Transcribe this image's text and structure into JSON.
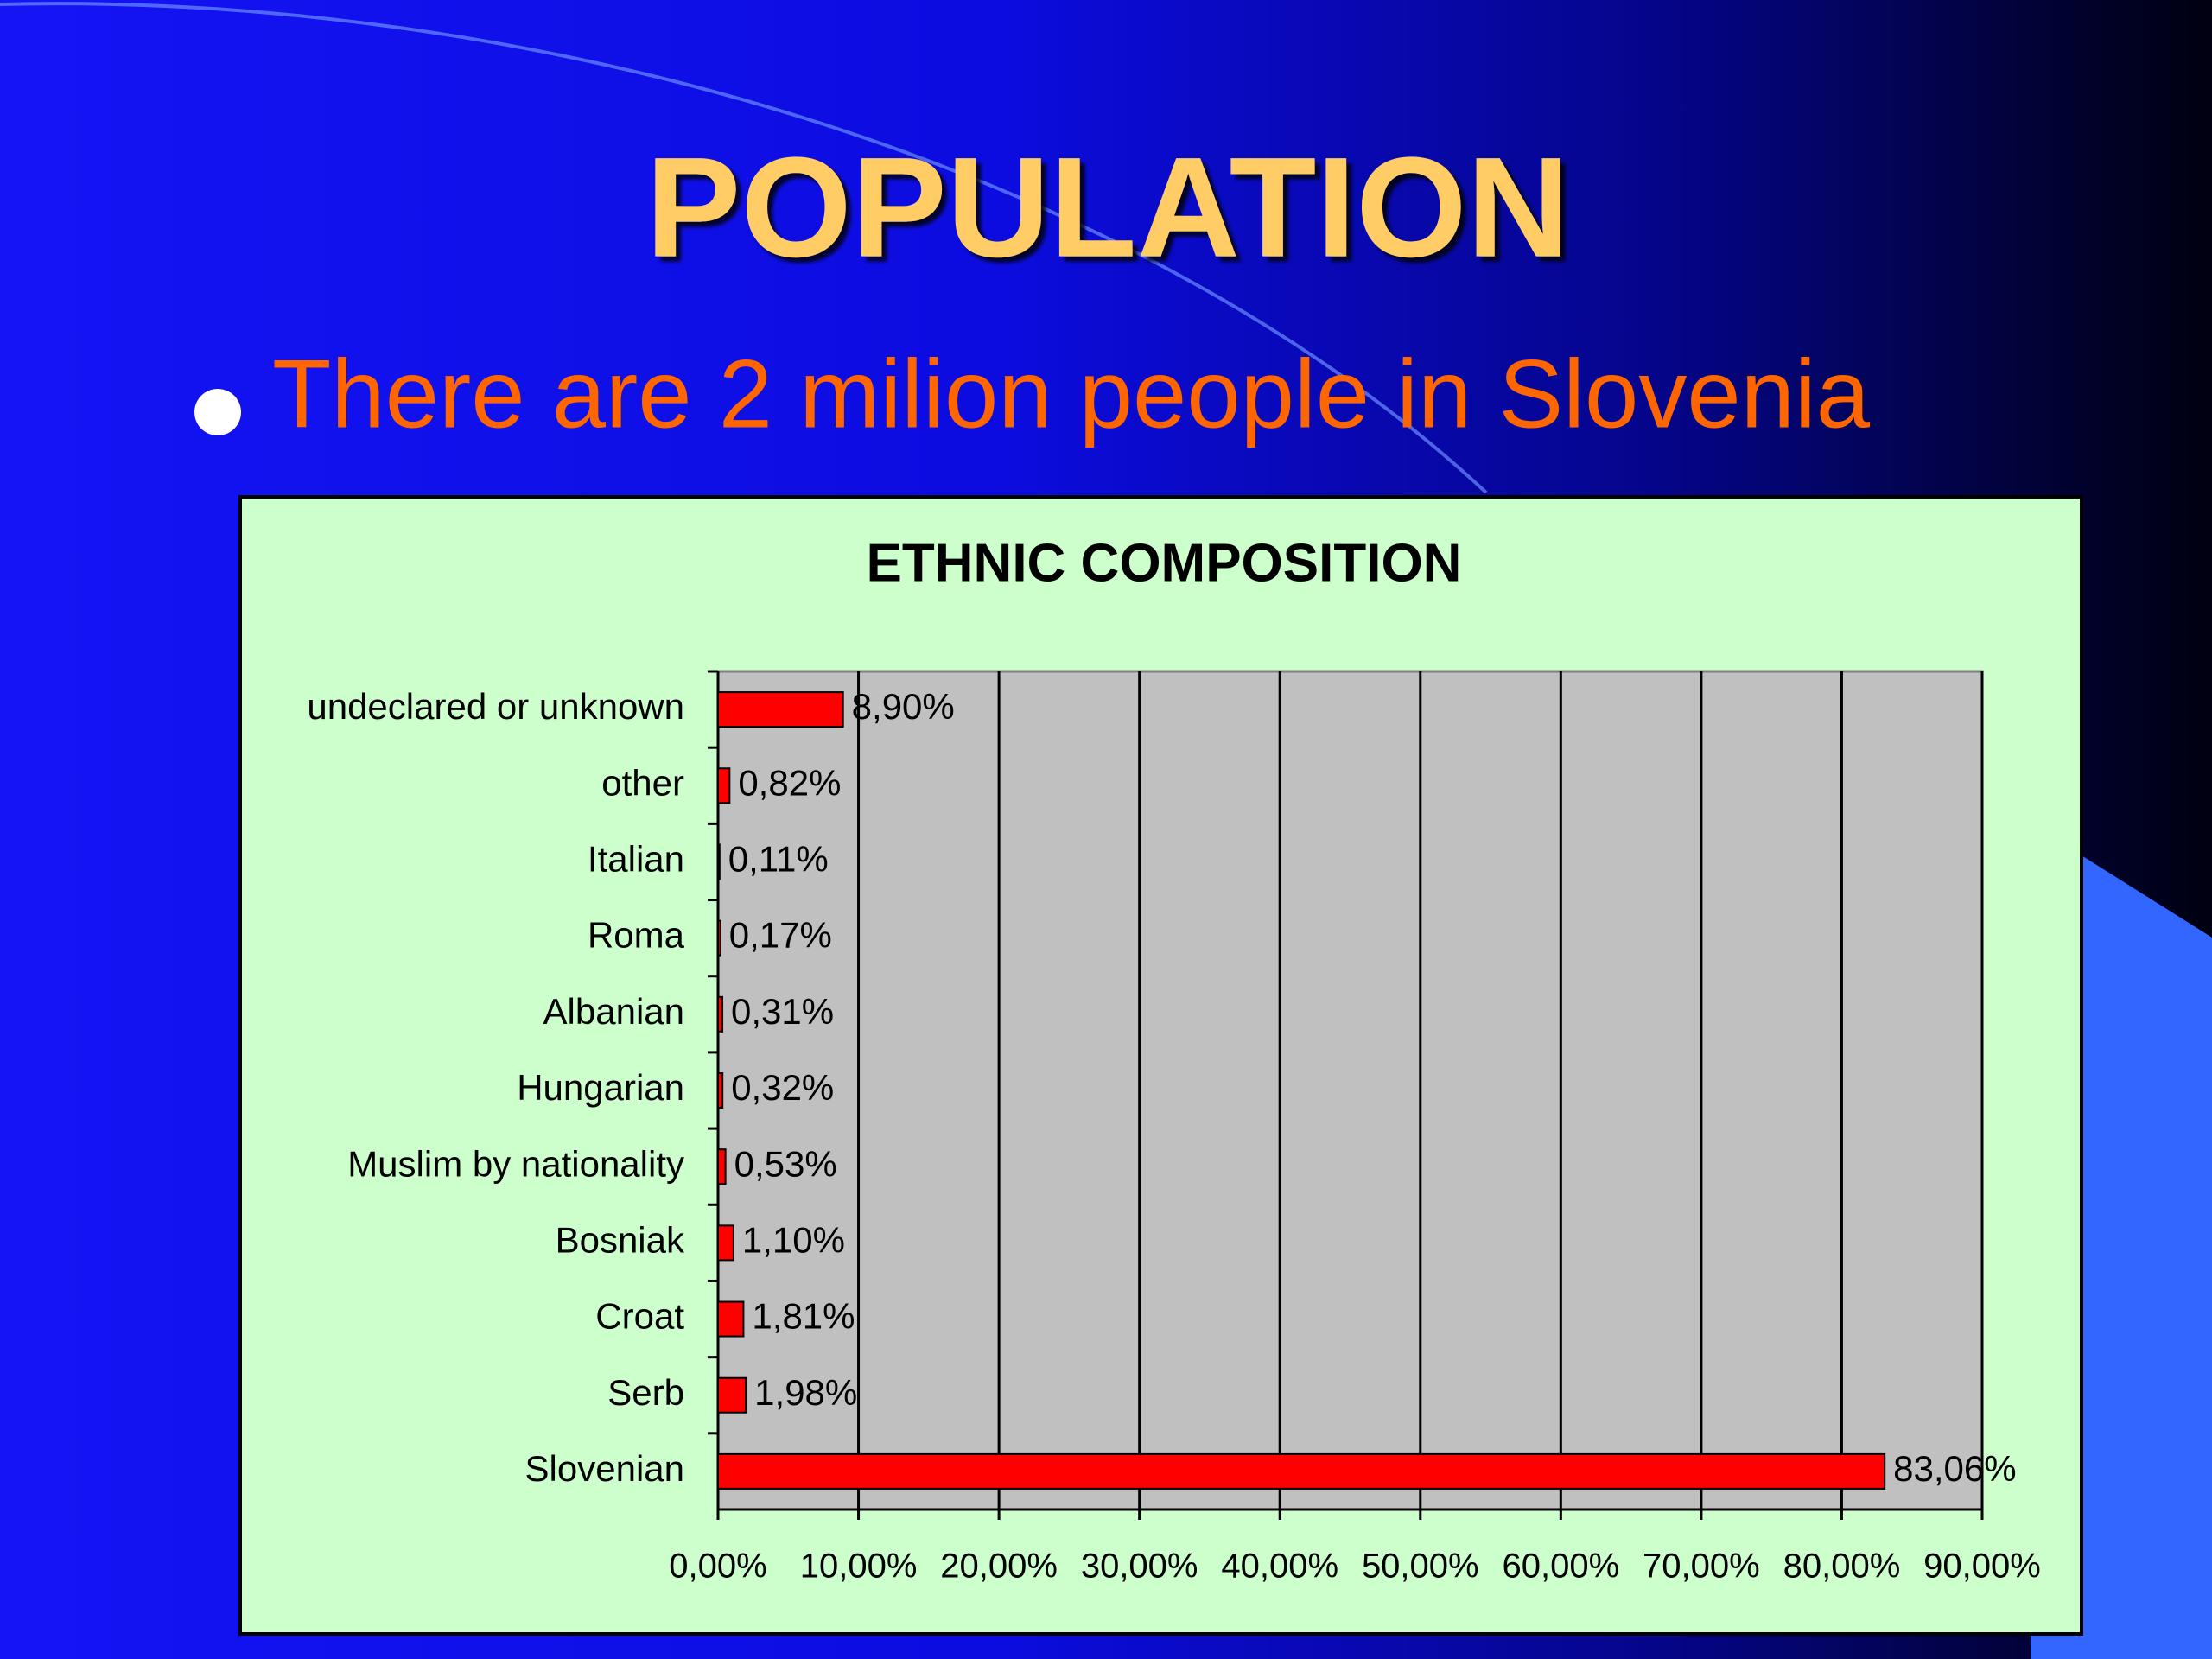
{
  "slide": {
    "title": "POPULATION",
    "bullet": "There are 2 milion people in Slovenia"
  },
  "chart_data": {
    "type": "hbar",
    "title": "ETHNIC COMPOSITION",
    "categories": [
      "undeclared or unknown",
      "other",
      "Italian",
      "Roma",
      "Albanian",
      "Hungarian",
      "Muslim by nationality",
      "Bosniak",
      "Croat",
      "Serb",
      "Slovenian"
    ],
    "values": [
      8.9,
      0.82,
      0.11,
      0.17,
      0.31,
      0.32,
      0.53,
      1.1,
      1.81,
      1.98,
      83.06
    ],
    "value_labels": [
      "8,90%",
      "0,82%",
      "0,11%",
      "0,17%",
      "0,31%",
      "0,32%",
      "0,53%",
      "1,10%",
      "1,81%",
      "1,98%",
      "83,06%"
    ],
    "color": "#ff0000",
    "xlim": [
      0,
      90
    ],
    "xticks": [
      {
        "value": 0,
        "label": "0,00%"
      },
      {
        "value": 10,
        "label": "10,00%"
      },
      {
        "value": 20,
        "label": "20,00%"
      },
      {
        "value": 30,
        "label": "30,00%"
      },
      {
        "value": 40,
        "label": "40,00%"
      },
      {
        "value": 50,
        "label": "50,00%"
      },
      {
        "value": 60,
        "label": "60,00%"
      },
      {
        "value": 70,
        "label": "70,00%"
      },
      {
        "value": 80,
        "label": "80,00%"
      },
      {
        "value": 90,
        "label": "90,00%"
      }
    ],
    "grid": true
  }
}
